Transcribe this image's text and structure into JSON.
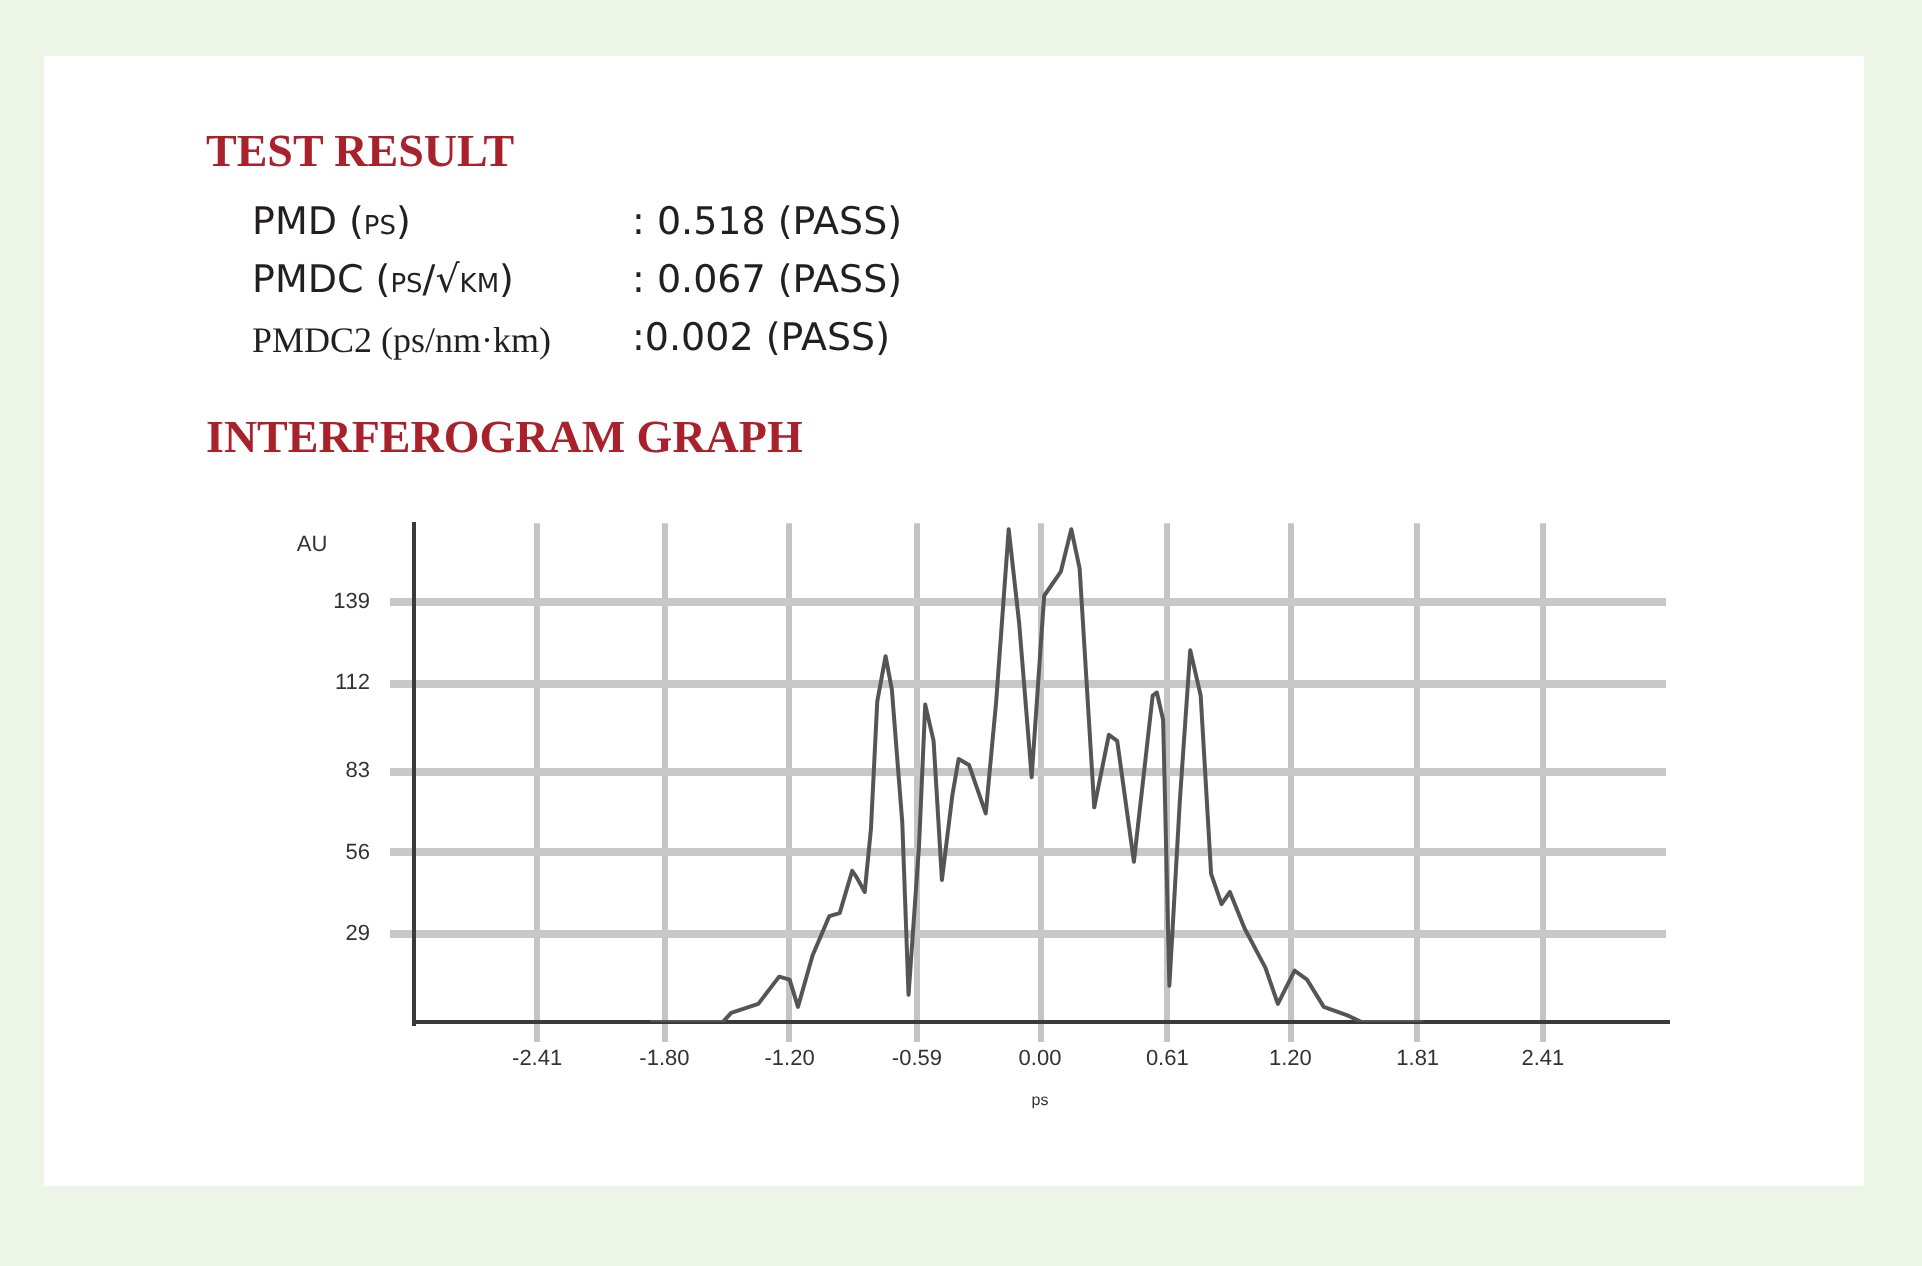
{
  "chart_data": {
    "type": "line",
    "title": "INTERFEROGRAM GRAPH",
    "xlabel": "ps",
    "ylabel": "AU",
    "annotations": [
      "TEST RESULT",
      "PMD (ps)",
      ": 0.518 (PASS)",
      "PMDC (ps/√km)",
      ": 0.067 (PASS)",
      "PMDC2 (ps/nm·km)",
      ":0.002 (PASS)"
    ],
    "x": [
      -1.86,
      -1.52,
      -1.48,
      -1.35,
      -1.25,
      -1.2,
      -1.16,
      -1.09,
      -1.01,
      -0.96,
      -0.9,
      -0.88,
      -0.84,
      -0.81,
      -0.78,
      -0.74,
      -0.71,
      -0.66,
      -0.63,
      -0.58,
      -0.55,
      -0.51,
      -0.47,
      -0.42,
      -0.39,
      -0.34,
      -0.26,
      -0.21,
      -0.15,
      -0.1,
      -0.04,
      0.02,
      0.1,
      0.15,
      0.19,
      0.26,
      0.33,
      0.37,
      0.45,
      0.54,
      0.56,
      0.59,
      0.62,
      0.67,
      0.72,
      0.77,
      0.82,
      0.87,
      0.91,
      0.98,
      1.08,
      1.14,
      1.22,
      1.28,
      1.36,
      1.48,
      1.54,
      1.83
    ],
    "series": [
      {
        "color": "#555555",
        "values": [
          0,
          0,
          3,
          6,
          15,
          14,
          5,
          22,
          35,
          36,
          50,
          48,
          43,
          64,
          106,
          121,
          110,
          66,
          9,
          58,
          105,
          93,
          47,
          75,
          87,
          85,
          69,
          106,
          163,
          132,
          81,
          141,
          149,
          163,
          150,
          71,
          95,
          93,
          53,
          108,
          109,
          100,
          12,
          73,
          123,
          108,
          49,
          39,
          43,
          31,
          18,
          6,
          17,
          14,
          5,
          2,
          0,
          0
        ]
      }
    ],
    "xlim": [
      -3.0,
      3.0
    ],
    "ylim": [
      0,
      165
    ],
    "xticks": [
      -2.41,
      {
        "value": -1.8,
        "label": "-1.80"
      },
      {
        "value": -1.2,
        "label": "-1.20"
      },
      -0.59,
      {
        "value": 0,
        "label": "0.00"
      },
      0.61,
      {
        "value": 1.2,
        "label": "1.20"
      },
      1.81,
      2.41
    ],
    "yticks": [
      29,
      56,
      83,
      112,
      139
    ],
    "grid": true
  }
}
